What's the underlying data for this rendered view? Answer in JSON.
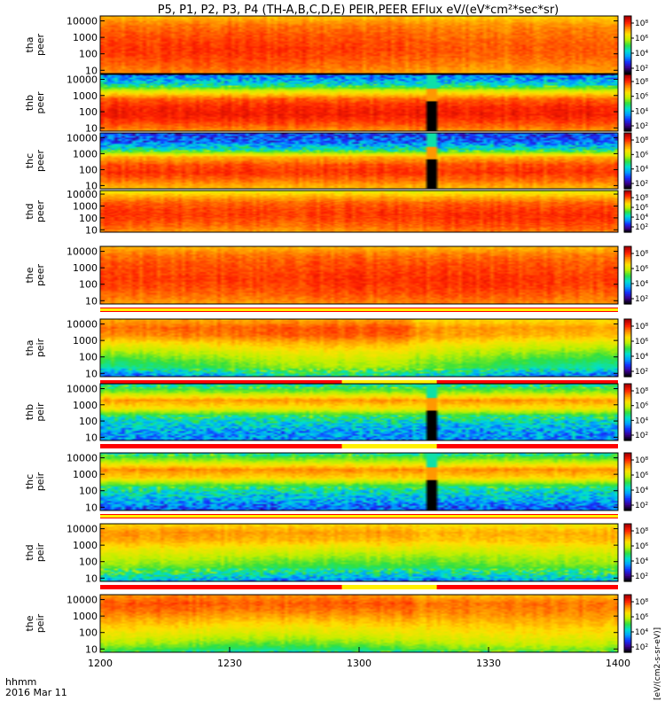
{
  "title": "P5, P1, P2, P3, P4 (TH-A,B,C,D,E) PEIR,PEER EFlux eV/(eV*cm²*sec*sr)",
  "footer": {
    "time_label": "hhmm",
    "date_label": "2016 Mar 11"
  },
  "colorbar_unit": "[eV/(cm2-s-sr-eV)]",
  "colors": {
    "palette": [
      "#000000",
      "#3a0090",
      "#1530ff",
      "#00a0ff",
      "#00e0d0",
      "#30e040",
      "#c0f000",
      "#ffe000",
      "#ff8c00",
      "#ff2000",
      "#b00000"
    ]
  },
  "chart_data": {
    "type": "heatmap",
    "x_label": "hhmm",
    "x_ticks": [
      "1200",
      "1230",
      "1300",
      "1330",
      "1400"
    ],
    "x_range": [
      "1200",
      "1400"
    ],
    "y_scale": "log",
    "panels": [
      {
        "id": "tha-peer",
        "label": "tha peer",
        "y_ticks": [
          "10000",
          "1000",
          "100",
          "10"
        ],
        "cbar_ticks": [
          "10⁸",
          "10⁶",
          "10⁴",
          "10²"
        ],
        "profile": [
          6.2,
          6.7,
          6.9,
          7.0,
          7.1,
          7.0,
          6.8,
          6.5
        ],
        "trend": 0.2,
        "fill_gap": null,
        "flag_bar": null
      },
      {
        "id": "thb-peer",
        "label": "thb peer",
        "y_ticks": [
          "10000",
          "1000",
          "100",
          "10"
        ],
        "cbar_ticks": [
          "10⁸",
          "10⁶",
          "10⁴",
          "10²"
        ],
        "profile": [
          2.8,
          3.6,
          5.5,
          6.9,
          7.3,
          7.4,
          7.1,
          6.6
        ],
        "trend": 0,
        "fill_gap": [
          "1316",
          "1318"
        ],
        "flag_bar": null
      },
      {
        "id": "thc-peer",
        "label": "thc peer",
        "y_ticks": [
          "10000",
          "1000",
          "100",
          "10"
        ],
        "cbar_ticks": [
          "10⁸",
          "10⁶",
          "10⁴",
          "10²"
        ],
        "profile": [
          2.5,
          2.7,
          3.9,
          6.3,
          7.0,
          7.2,
          6.8,
          6.2
        ],
        "trend": 0,
        "fill_gap": [
          "1316",
          "1318"
        ],
        "flag_bar": null
      },
      {
        "id": "thd-peer",
        "label": "thd peer",
        "y_ticks": [
          "10000",
          "1000",
          "100",
          "10"
        ],
        "cbar_ticks": [
          "10⁸",
          "10⁶",
          "10⁴",
          "10²"
        ],
        "profile": [
          5.6,
          6.4,
          6.9,
          7.1,
          7.2,
          7.1,
          6.9,
          6.6
        ],
        "trend": 0.15,
        "fill_gap": null,
        "flag_bar": null
      },
      {
        "id": "the-peer",
        "label": "the peer",
        "y_ticks": [
          "10000",
          "1000",
          "100",
          "10"
        ],
        "cbar_ticks": [
          "10⁸",
          "10⁶",
          "10⁴",
          "10²"
        ],
        "profile": [
          6.3,
          6.8,
          7.0,
          7.1,
          7.2,
          7.1,
          6.9,
          6.6
        ],
        "trend": 0.1,
        "fill_gap": null,
        "flag_bar": "yellow"
      },
      {
        "id": "tha-peir",
        "label": "tha peir",
        "y_ticks": [
          "10000",
          "1000",
          "100",
          "10"
        ],
        "cbar_ticks": [
          "10⁸",
          "10⁶",
          "10⁴",
          "10²"
        ],
        "profile": [
          6.4,
          6.9,
          6.7,
          6.0,
          5.4,
          4.9,
          4.5,
          3.4
        ],
        "trend": 0.6,
        "fill_gap": null,
        "flag_bar": "red"
      },
      {
        "id": "thb-peir",
        "label": "thb peir",
        "y_ticks": [
          "10000",
          "1000",
          "100",
          "10"
        ],
        "cbar_ticks": [
          "10⁸",
          "10⁶",
          "10⁴",
          "10²"
        ],
        "profile": [
          4.0,
          5.0,
          6.5,
          5.8,
          4.3,
          3.6,
          3.2,
          3.0
        ],
        "trend": 0,
        "fill_gap": [
          "1316",
          "1318"
        ],
        "flag_bar": "red"
      },
      {
        "id": "thc-peir",
        "label": "thc peir",
        "y_ticks": [
          "10000",
          "1000",
          "100",
          "10"
        ],
        "cbar_ticks": [
          "10⁸",
          "10⁶",
          "10⁴",
          "10²"
        ],
        "profile": [
          4.2,
          5.2,
          6.6,
          6.0,
          4.5,
          3.7,
          3.2,
          2.6
        ],
        "trend": 0,
        "fill_gap": [
          "1316",
          "1318"
        ],
        "flag_bar": "yellow"
      },
      {
        "id": "thd-peir",
        "label": "thd peir",
        "y_ticks": [
          "10000",
          "1000",
          "100",
          "10"
        ],
        "cbar_ticks": [
          "10⁸",
          "10⁶",
          "10⁴",
          "10²"
        ],
        "profile": [
          6.0,
          6.5,
          6.3,
          5.7,
          5.2,
          4.8,
          4.2,
          3.2
        ],
        "trend": 0.3,
        "fill_gap": null,
        "flag_bar": "red"
      },
      {
        "id": "the-peir",
        "label": "the peir",
        "y_ticks": [
          "10000",
          "1000",
          "100",
          "10"
        ],
        "cbar_ticks": [
          "10⁸",
          "10⁶",
          "10⁴",
          "10²"
        ],
        "profile": [
          6.6,
          7.0,
          6.8,
          6.4,
          6.0,
          5.6,
          5.1,
          4.4
        ],
        "trend": 0.4,
        "fill_gap": null,
        "flag_bar": null
      }
    ]
  }
}
